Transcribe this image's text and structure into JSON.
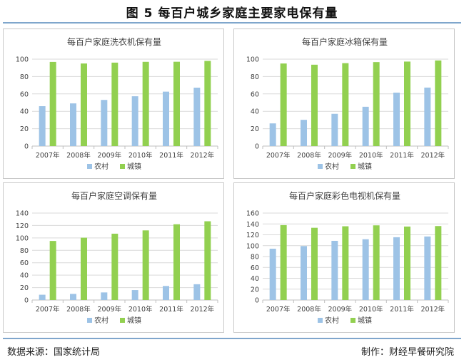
{
  "figure_title": "图 5 每百户城乡家庭主要家电保有量",
  "source": "数据来源：国家统计局",
  "producer": "制作：财经早餐研究院",
  "colors": {
    "rural": "#9dc3e6",
    "urban": "#92d050",
    "grid": "#d9d9d9",
    "axis": "#bfbfbf",
    "rule": "#7fa6cc"
  },
  "chart_data": [
    {
      "type": "bar",
      "title": "每百户家庭洗衣机保有量",
      "categories": [
        "2007年",
        "2008年",
        "2009年",
        "2010年",
        "2011年",
        "2012年"
      ],
      "series": [
        {
          "name": "农村",
          "values": [
            45.9,
            49.1,
            53.1,
            57.3,
            62.6,
            67.2
          ]
        },
        {
          "name": "城镇",
          "values": [
            96.8,
            95.0,
            96.0,
            96.9,
            97.0,
            98.0
          ]
        }
      ],
      "ylim": [
        0,
        100
      ],
      "yticks": [
        0,
        20,
        40,
        60,
        80,
        100
      ],
      "legend": "bottom"
    },
    {
      "type": "bar",
      "title": "每百户家庭冰箱保有量",
      "categories": [
        "2007年",
        "2008年",
        "2009年",
        "2010年",
        "2011年",
        "2012年"
      ],
      "series": [
        {
          "name": "农村",
          "values": [
            26.1,
            30.2,
            37.1,
            45.2,
            61.5,
            67.3
          ]
        },
        {
          "name": "城镇",
          "values": [
            95.0,
            93.6,
            95.4,
            96.6,
            97.2,
            98.5
          ]
        }
      ],
      "ylim": [
        0,
        100
      ],
      "yticks": [
        0,
        20,
        40,
        60,
        80,
        100
      ],
      "legend": "bottom"
    },
    {
      "type": "bar",
      "title": "每百户家庭空调保有量",
      "categories": [
        "2007年",
        "2008年",
        "2009年",
        "2010年",
        "2011年",
        "2012年"
      ],
      "series": [
        {
          "name": "农村",
          "values": [
            8.5,
            9.8,
            12.2,
            16.0,
            22.6,
            25.4
          ]
        },
        {
          "name": "城镇",
          "values": [
            95.1,
            100.3,
            106.8,
            112.1,
            122.0,
            126.8
          ]
        }
      ],
      "ylim": [
        0,
        140
      ],
      "yticks": [
        0,
        20,
        40,
        60,
        80,
        100,
        120,
        140
      ],
      "legend": "bottom"
    },
    {
      "type": "bar",
      "title": "每百户家庭彩色电视机保有量",
      "categories": [
        "2007年",
        "2008年",
        "2009年",
        "2010年",
        "2011年",
        "2012年"
      ],
      "series": [
        {
          "name": "农村",
          "values": [
            94.4,
            99.2,
            108.9,
            111.8,
            115.5,
            116.9
          ]
        },
        {
          "name": "城镇",
          "values": [
            137.8,
            132.9,
            135.7,
            137.4,
            135.2,
            136.1
          ]
        }
      ],
      "ylim": [
        0,
        160
      ],
      "yticks": [
        0,
        20,
        40,
        60,
        80,
        100,
        120,
        140,
        160
      ],
      "legend": "bottom"
    }
  ]
}
